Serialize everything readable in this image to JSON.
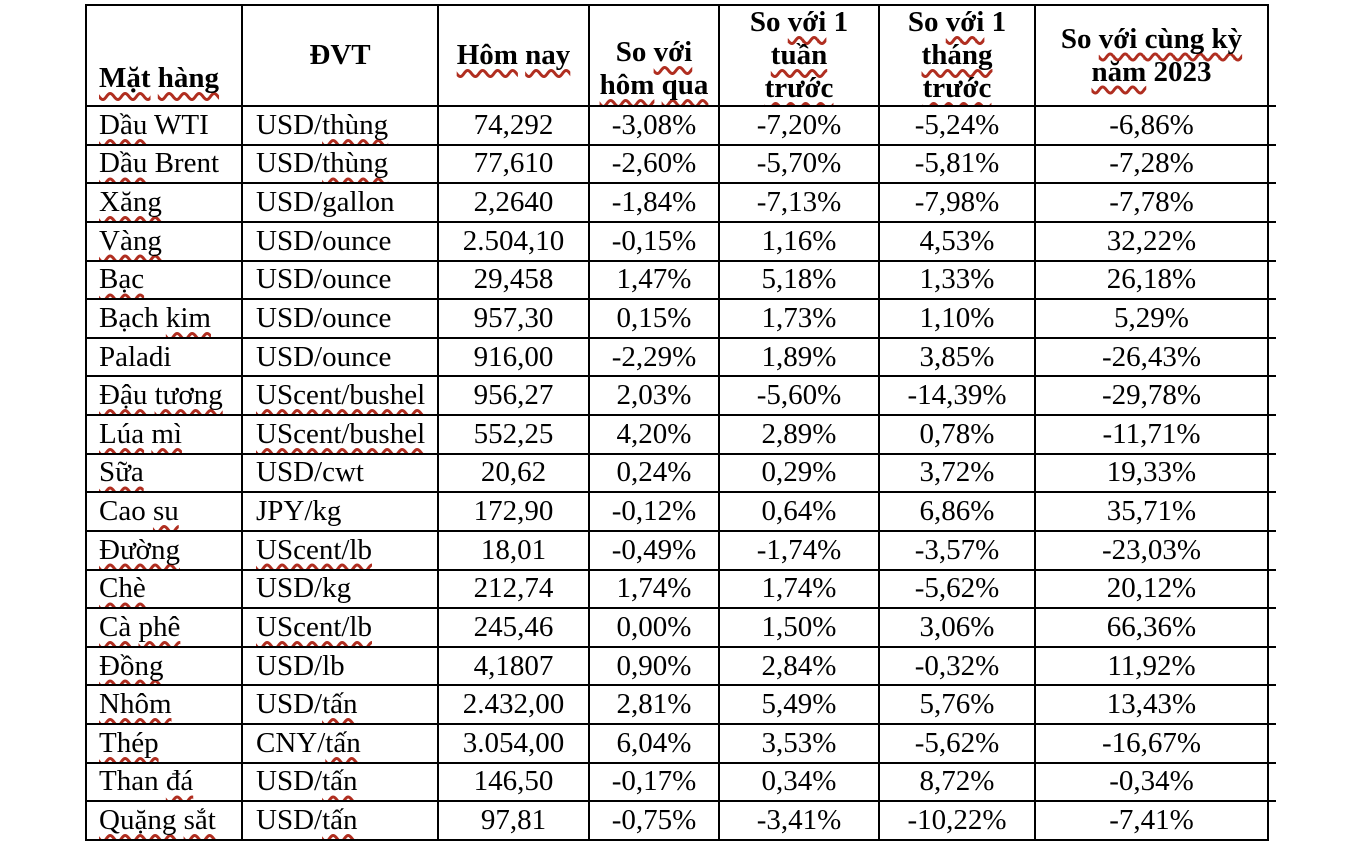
{
  "page": {
    "background": "#ffffff"
  },
  "colors": {
    "border": "#000000",
    "text": "#000000",
    "squiggle_red": "#b02e20"
  },
  "table": {
    "header": [
      {
        "key": "mat-hang",
        "align": "bottom-left",
        "lines": [
          [
            {
              "t": "Mặt",
              "w": true
            },
            {
              "t": " ",
              "w": false
            },
            {
              "t": "hàng",
              "w": true
            }
          ]
        ]
      },
      {
        "key": "dvt",
        "align": "center",
        "lines": [
          [
            {
              "t": "ĐVT",
              "w": false
            }
          ]
        ]
      },
      {
        "key": "hom-nay",
        "align": "center",
        "lines": [
          [
            {
              "t": "Hôm",
              "w": true
            },
            {
              "t": " ",
              "w": false
            },
            {
              "t": "nay",
              "w": true
            }
          ]
        ]
      },
      {
        "key": "so-voi-hom-qua",
        "align": "bottom-center",
        "lines": [
          [
            {
              "t": "So ",
              "w": false
            },
            {
              "t": "với",
              "w": true
            }
          ],
          [
            {
              "t": "hôm",
              "w": true
            },
            {
              "t": " ",
              "w": false
            },
            {
              "t": "qua",
              "w": true
            }
          ]
        ]
      },
      {
        "key": "so-voi-1-tuan-truoc",
        "align": "center",
        "lines": [
          [
            {
              "t": "So ",
              "w": false
            },
            {
              "t": "với",
              "w": true
            },
            {
              "t": " 1",
              "w": false
            }
          ],
          [
            {
              "t": "tuần",
              "w": true
            }
          ],
          [
            {
              "t": "trước",
              "w": true
            }
          ]
        ]
      },
      {
        "key": "so-voi-1-thang-truoc",
        "align": "center",
        "lines": [
          [
            {
              "t": "So ",
              "w": false
            },
            {
              "t": "với",
              "w": true
            },
            {
              "t": " 1",
              "w": false
            }
          ],
          [
            {
              "t": "tháng",
              "w": true
            }
          ],
          [
            {
              "t": "trước",
              "w": true
            }
          ]
        ]
      },
      {
        "key": "so-voi-cung-ky-nam-2023",
        "align": "center",
        "lines": [
          [
            {
              "t": "So ",
              "w": false
            },
            {
              "t": "với cùng kỳ",
              "w": true
            }
          ],
          [
            {
              "t": "năm",
              "w": true
            },
            {
              "t": " 2023",
              "w": false
            }
          ]
        ]
      }
    ],
    "rows": [
      {
        "name": [
          {
            "t": "Dầu",
            "w": true
          },
          {
            "t": " WTI",
            "w": false
          }
        ],
        "unit": [
          {
            "t": "USD/",
            "w": false
          },
          {
            "t": "thùng",
            "w": true
          }
        ],
        "today": "74,292",
        "vs_yesterday": "-3,08%",
        "vs_week": "-7,20%",
        "vs_month": "-5,24%",
        "vs_2023": "-6,86%"
      },
      {
        "name": [
          {
            "t": "Dầu",
            "w": true
          },
          {
            "t": " Brent",
            "w": false
          }
        ],
        "unit": [
          {
            "t": "USD/",
            "w": false
          },
          {
            "t": "thùng",
            "w": true
          }
        ],
        "today": "77,610",
        "vs_yesterday": "-2,60%",
        "vs_week": "-5,70%",
        "vs_month": "-5,81%",
        "vs_2023": "-7,28%"
      },
      {
        "name": [
          {
            "t": "Xăng",
            "w": true
          }
        ],
        "unit": [
          {
            "t": "USD/gallon",
            "w": false
          }
        ],
        "today": "2,2640",
        "vs_yesterday": "-1,84%",
        "vs_week": "-7,13%",
        "vs_month": "-7,98%",
        "vs_2023": "-7,78%"
      },
      {
        "name": [
          {
            "t": "Vàng",
            "w": true
          }
        ],
        "unit": [
          {
            "t": "USD/ounce",
            "w": false
          }
        ],
        "today": "2.504,10",
        "vs_yesterday": "-0,15%",
        "vs_week": "1,16%",
        "vs_month": "4,53%",
        "vs_2023": "32,22%"
      },
      {
        "name": [
          {
            "t": "Bạc",
            "w": true
          }
        ],
        "unit": [
          {
            "t": "USD/ounce",
            "w": false
          }
        ],
        "today": "29,458",
        "vs_yesterday": "1,47%",
        "vs_week": "5,18%",
        "vs_month": "1,33%",
        "vs_2023": "26,18%"
      },
      {
        "name": [
          {
            "t": "Bạch ",
            "w": false
          },
          {
            "t": "kim",
            "w": true
          }
        ],
        "unit": [
          {
            "t": "USD/ounce",
            "w": false
          }
        ],
        "today": "957,30",
        "vs_yesterday": "0,15%",
        "vs_week": "1,73%",
        "vs_month": "1,10%",
        "vs_2023": "5,29%"
      },
      {
        "name": [
          {
            "t": "Paladi",
            "w": false
          }
        ],
        "unit": [
          {
            "t": "USD/ounce",
            "w": false
          }
        ],
        "today": "916,00",
        "vs_yesterday": "-2,29%",
        "vs_week": "1,89%",
        "vs_month": "3,85%",
        "vs_2023": "-26,43%"
      },
      {
        "name": [
          {
            "t": "Đậu",
            "w": true
          },
          {
            "t": " ",
            "w": false
          },
          {
            "t": "tương",
            "w": true
          }
        ],
        "unit": [
          {
            "t": "UScent/bushel",
            "w": true
          }
        ],
        "today": "956,27",
        "vs_yesterday": "2,03%",
        "vs_week": "-5,60%",
        "vs_month": "-14,39%",
        "vs_2023": "-29,78%"
      },
      {
        "name": [
          {
            "t": "Lúa",
            "w": true
          },
          {
            "t": " ",
            "w": false
          },
          {
            "t": "mì",
            "w": true
          }
        ],
        "unit": [
          {
            "t": "UScent/bushel",
            "w": true
          }
        ],
        "today": "552,25",
        "vs_yesterday": "4,20%",
        "vs_week": "2,89%",
        "vs_month": "0,78%",
        "vs_2023": "-11,71%"
      },
      {
        "name": [
          {
            "t": "Sữa",
            "w": true
          }
        ],
        "unit": [
          {
            "t": "USD/cwt",
            "w": false
          }
        ],
        "today": "20,62",
        "vs_yesterday": "0,24%",
        "vs_week": "0,29%",
        "vs_month": "3,72%",
        "vs_2023": "19,33%"
      },
      {
        "name": [
          {
            "t": "Cao ",
            "w": false
          },
          {
            "t": "su",
            "w": true
          }
        ],
        "unit": [
          {
            "t": "JPY/kg",
            "w": false
          }
        ],
        "today": "172,90",
        "vs_yesterday": "-0,12%",
        "vs_week": "0,64%",
        "vs_month": "6,86%",
        "vs_2023": "35,71%"
      },
      {
        "name": [
          {
            "t": "Đường",
            "w": true
          }
        ],
        "unit": [
          {
            "t": "UScent/lb",
            "w": true
          }
        ],
        "today": "18,01",
        "vs_yesterday": "-0,49%",
        "vs_week": "-1,74%",
        "vs_month": "-3,57%",
        "vs_2023": "-23,03%"
      },
      {
        "name": [
          {
            "t": "Chè",
            "w": true
          }
        ],
        "unit": [
          {
            "t": "USD/kg",
            "w": false
          }
        ],
        "today": "212,74",
        "vs_yesterday": "1,74%",
        "vs_week": "1,74%",
        "vs_month": "-5,62%",
        "vs_2023": "20,12%"
      },
      {
        "name": [
          {
            "t": "Cà",
            "w": true
          },
          {
            "t": " ",
            "w": false
          },
          {
            "t": "phê",
            "w": true
          }
        ],
        "unit": [
          {
            "t": "UScent/lb",
            "w": true
          }
        ],
        "today": "245,46",
        "vs_yesterday": "0,00%",
        "vs_week": "1,50%",
        "vs_month": "3,06%",
        "vs_2023": "66,36%"
      },
      {
        "name": [
          {
            "t": "Đồng",
            "w": true
          }
        ],
        "unit": [
          {
            "t": "USD/lb",
            "w": false
          }
        ],
        "today": "4,1807",
        "vs_yesterday": "0,90%",
        "vs_week": "2,84%",
        "vs_month": "-0,32%",
        "vs_2023": "11,92%"
      },
      {
        "name": [
          {
            "t": "Nhôm",
            "w": true
          }
        ],
        "unit": [
          {
            "t": "USD/",
            "w": false
          },
          {
            "t": "tấn",
            "w": true
          }
        ],
        "today": "2.432,00",
        "vs_yesterday": "2,81%",
        "vs_week": "5,49%",
        "vs_month": "5,76%",
        "vs_2023": "13,43%"
      },
      {
        "name": [
          {
            "t": "Thép",
            "w": true
          }
        ],
        "unit": [
          {
            "t": "CNY/",
            "w": false
          },
          {
            "t": "tấn",
            "w": true
          }
        ],
        "today": "3.054,00",
        "vs_yesterday": "6,04%",
        "vs_week": "3,53%",
        "vs_month": "-5,62%",
        "vs_2023": "-16,67%"
      },
      {
        "name": [
          {
            "t": "Than ",
            "w": false
          },
          {
            "t": "đá",
            "w": true
          }
        ],
        "unit": [
          {
            "t": "USD/",
            "w": false
          },
          {
            "t": "tấn",
            "w": true
          }
        ],
        "today": "146,50",
        "vs_yesterday": "-0,17%",
        "vs_week": "0,34%",
        "vs_month": "8,72%",
        "vs_2023": "-0,34%"
      },
      {
        "name": [
          {
            "t": "Quặng",
            "w": true
          },
          {
            "t": " ",
            "w": false
          },
          {
            "t": "sắt",
            "w": true
          }
        ],
        "unit": [
          {
            "t": "USD/",
            "w": false
          },
          {
            "t": "tấn",
            "w": true
          }
        ],
        "today": "97,81",
        "vs_yesterday": "-0,75%",
        "vs_week": "-3,41%",
        "vs_month": "-10,22%",
        "vs_2023": "-7,41%"
      }
    ]
  }
}
